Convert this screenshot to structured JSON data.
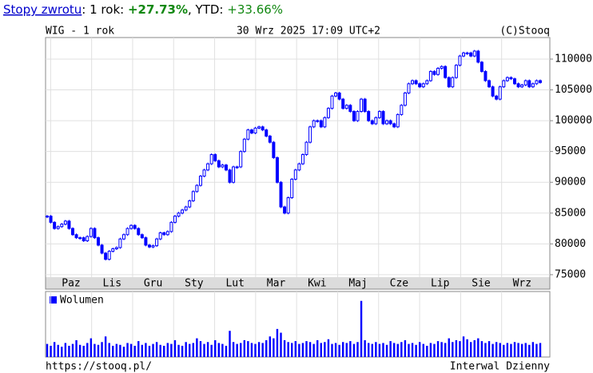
{
  "header": {
    "link": "Stopy zwrotu",
    "period_label": ": 1 rok:",
    "period_return": "+27.73%",
    "ytd_label": ", YTD:",
    "ytd_return": "+33.66%"
  },
  "chart_data": {
    "type": "candlestick",
    "title": "WIG - 1 rok",
    "timestamp": "30 Wrz 2025 17:09 UTC+2",
    "source": "(C)Stooq",
    "footer_url": "https://stooq.pl/",
    "interval": "Interwal Dzienny",
    "categories": [
      "Paz",
      "Lis",
      "Gru",
      "Sty",
      "Lut",
      "Mar",
      "Kwi",
      "Maj",
      "Cze",
      "Lip",
      "Sie",
      "Wrz"
    ],
    "color": "#0000ff",
    "ylim": [
      74600,
      113500
    ],
    "yticks": [
      75000,
      80000,
      85000,
      90000,
      95000,
      100000,
      105000,
      110000
    ],
    "grid": true,
    "close": [
      84500,
      83500,
      82500,
      82800,
      83200,
      83700,
      82500,
      81500,
      81000,
      81000,
      80500,
      81200,
      82500,
      81000,
      79800,
      78500,
      77500,
      78800,
      79200,
      79400,
      80800,
      81500,
      82500,
      83000,
      82500,
      81500,
      81000,
      79800,
      79500,
      79700,
      80800,
      81800,
      81500,
      82000,
      83500,
      84500,
      85000,
      85500,
      86000,
      87000,
      88500,
      89500,
      91000,
      92000,
      93000,
      94500,
      93500,
      92500,
      92800,
      92000,
      90000,
      92500,
      92500,
      95000,
      97000,
      98500,
      98000,
      98800,
      99000,
      98500,
      97500,
      96500,
      94000,
      90000,
      86000,
      85000,
      87500,
      90500,
      92000,
      93000,
      94500,
      96500,
      99000,
      100000,
      100000,
      99000,
      100500,
      102000,
      104000,
      104500,
      103500,
      102000,
      102500,
      101500,
      100000,
      101500,
      103500,
      101500,
      100000,
      99500,
      100500,
      101500,
      99500,
      100000,
      99500,
      99000,
      101000,
      102500,
      104500,
      106000,
      106500,
      106000,
      105500,
      106000,
      106500,
      108000,
      107500,
      108500,
      108800,
      107000,
      105500,
      107000,
      109000,
      110500,
      111000,
      111000,
      110500,
      111300,
      109500,
      108000,
      106500,
      105500,
      104000,
      103500,
      105500,
      106500,
      107000,
      106800,
      106000,
      105500,
      105800,
      106500,
      105500,
      106000,
      106500,
      106200
    ],
    "volume_name": "Wolumen",
    "volume_lim": [
      0,
      70
    ],
    "volume": [
      14,
      12,
      16,
      13,
      11,
      15,
      12,
      14,
      18,
      13,
      12,
      15,
      20,
      14,
      13,
      16,
      22,
      15,
      12,
      14,
      13,
      11,
      15,
      14,
      12,
      17,
      13,
      15,
      12,
      14,
      16,
      13,
      12,
      15,
      14,
      18,
      13,
      12,
      16,
      14,
      15,
      20,
      17,
      14,
      16,
      13,
      18,
      15,
      14,
      12,
      28,
      16,
      14,
      15,
      18,
      17,
      15,
      14,
      16,
      15,
      18,
      22,
      20,
      30,
      26,
      18,
      16,
      15,
      17,
      14,
      15,
      17,
      16,
      14,
      18,
      15,
      16,
      19,
      14,
      15,
      13,
      16,
      15,
      17,
      14,
      16,
      60,
      18,
      15,
      14,
      16,
      14,
      15,
      13,
      17,
      15,
      14,
      16,
      18,
      14,
      15,
      13,
      16,
      14,
      12,
      15,
      14,
      17,
      16,
      15,
      20,
      16,
      18,
      17,
      22,
      19,
      16,
      18,
      20,
      17,
      15,
      17,
      14,
      16,
      15,
      13,
      15,
      14,
      16,
      15,
      14,
      15,
      13,
      16,
      14,
      15
    ]
  }
}
